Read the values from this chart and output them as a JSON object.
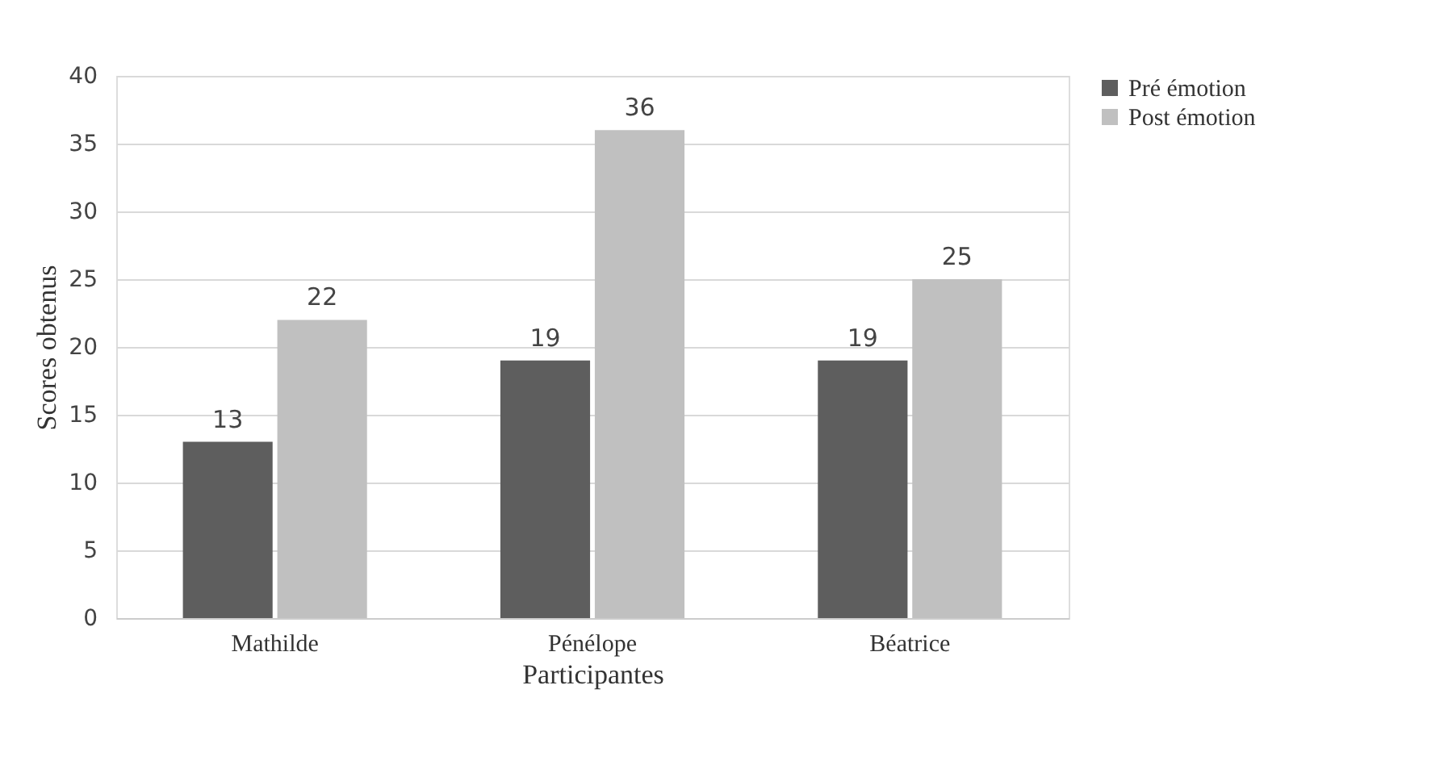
{
  "chart_data": {
    "type": "bar",
    "xlabel": "Participantes",
    "ylabel": "Scores obtenus",
    "categories": [
      "Mathilde",
      "Pénélope",
      "Béatrice"
    ],
    "series": [
      {
        "name": "Pré émotion",
        "color": "#5e5e5e",
        "values": [
          13,
          19,
          19
        ]
      },
      {
        "name": "Post émotion",
        "color": "#c0c0c0",
        "values": [
          22,
          36,
          25
        ]
      }
    ],
    "ylim": [
      0,
      40
    ],
    "yticks": [
      0,
      5,
      10,
      15,
      20,
      25,
      30,
      35,
      40
    ],
    "grid": "y",
    "legend": "right",
    "data_labels": true
  }
}
